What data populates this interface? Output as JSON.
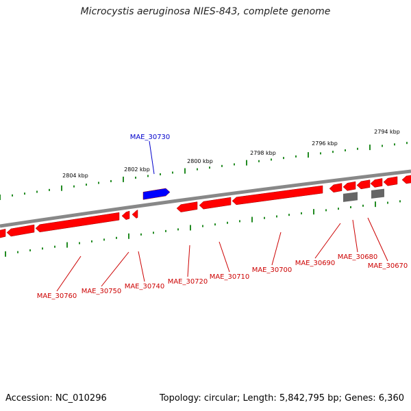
{
  "title": "Microcystis aeruginosa NIES-843, complete genome",
  "footer": {
    "accession": "Accession: NC_010296",
    "summary": "Topology: circular; Length: 5,842,795 bp; Genes: 6,360"
  },
  "colors": {
    "reverse_gene": "#ff0000",
    "forward_gene": "#0000ff",
    "rna_gene": "#666666",
    "backbone": "#888888",
    "tick": "#228b22",
    "label_reverse": "#cc0000",
    "label_forward": "#0000cc"
  },
  "scale_labels": [
    "2804 kbp",
    "2802 kbp",
    "2800 kbp",
    "2798 kbp",
    "2796 kbp",
    "2794 kbp"
  ],
  "gene_labels": {
    "forward": [
      "MAE_30730"
    ],
    "reverse": [
      "MAE_30760",
      "MAE_30750",
      "MAE_30740",
      "MAE_30720",
      "MAE_30710",
      "MAE_30700",
      "MAE_30690",
      "MAE_30680",
      "MAE_30670"
    ]
  }
}
